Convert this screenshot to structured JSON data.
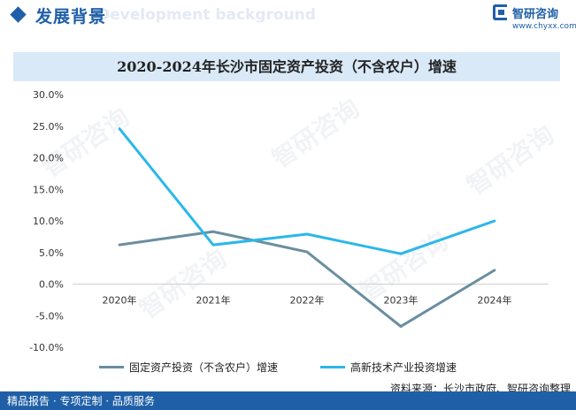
{
  "header": {
    "title": "发展背景",
    "background_text": "Development background"
  },
  "logo": {
    "name": "智研咨询",
    "url": "www.chyxx.com"
  },
  "watermark": "智研咨询",
  "chart_data": {
    "type": "line",
    "title": "2020-2024年长沙市固定资产投资（不含农户）增速",
    "categories": [
      "2020年",
      "2021年",
      "2022年",
      "2023年",
      "2024年"
    ],
    "series": [
      {
        "name": "固定资产投资（不含农户）增速",
        "color": "#6a8ea0",
        "values": [
          6.2,
          8.3,
          5.1,
          -6.7,
          2.2
        ]
      },
      {
        "name": "高新技术产业投资增速",
        "color": "#2bb7ea",
        "values": [
          24.6,
          6.2,
          7.9,
          4.8,
          10.0
        ]
      }
    ],
    "ylim": [
      -10,
      30
    ],
    "yticks": [
      30,
      25,
      20,
      15,
      10,
      5,
      0,
      -5,
      -10
    ],
    "ytick_labels": [
      "30.0%",
      "25.0%",
      "20.0%",
      "15.0%",
      "10.0%",
      "5.0%",
      "0.0%",
      "-5.0%",
      "-10.0%"
    ],
    "grid": false,
    "legend": "bottom"
  },
  "footer": {
    "left_text": "精品报告 · 专项定制 · 品质服务",
    "source": "资料来源：长沙市政府、智研咨询整理"
  }
}
